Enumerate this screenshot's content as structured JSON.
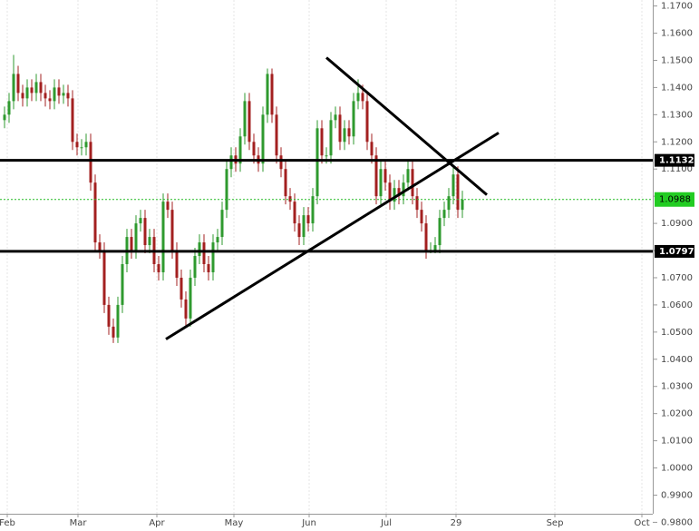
{
  "chart_data": {
    "type": "candlestick",
    "up_color": "#2f9a2f",
    "down_color": "#a32020",
    "open": [
      1.128,
      1.13,
      1.135,
      1.145,
      1.138,
      1.136,
      1.14,
      1.138,
      1.142,
      1.138,
      1.136,
      1.135,
      1.14,
      1.137,
      1.138,
      1.136,
      1.12,
      1.118,
      1.118,
      1.12,
      1.105,
      1.083,
      1.08,
      1.06,
      1.052,
      1.048,
      1.06,
      1.075,
      1.085,
      1.08,
      1.09,
      1.092,
      1.082,
      1.085,
      1.075,
      1.072,
      1.098,
      1.095,
      1.08,
      1.07,
      1.062,
      1.055,
      1.07,
      1.078,
      1.083,
      1.075,
      1.072,
      1.083,
      1.085,
      1.095,
      1.11,
      1.115,
      1.112,
      1.122,
      1.135,
      1.12,
      1.115,
      1.112,
      1.13,
      1.145,
      1.13,
      1.115,
      1.11,
      1.1,
      1.098,
      1.09,
      1.085,
      1.093,
      1.09,
      1.1,
      1.125,
      1.115,
      1.115,
      1.128,
      1.13,
      1.12,
      1.125,
      1.122,
      1.135,
      1.138,
      1.135,
      1.12,
      1.115,
      1.1,
      1.11,
      1.105,
      1.098,
      1.103,
      1.1,
      1.105,
      1.11,
      1.1,
      1.095,
      1.09,
      1.08,
      1.08,
      1.082,
      1.092,
      1.095,
      1.1,
      1.108,
      1.095
    ],
    "high": [
      1.133,
      1.138,
      1.152,
      1.148,
      1.141,
      1.143,
      1.143,
      1.145,
      1.145,
      1.141,
      1.139,
      1.143,
      1.143,
      1.141,
      1.141,
      1.139,
      1.123,
      1.121,
      1.123,
      1.123,
      1.108,
      1.086,
      1.083,
      1.063,
      1.055,
      1.063,
      1.078,
      1.088,
      1.088,
      1.093,
      1.095,
      1.095,
      1.088,
      1.088,
      1.078,
      1.101,
      1.101,
      1.098,
      1.083,
      1.073,
      1.065,
      1.073,
      1.081,
      1.086,
      1.086,
      1.078,
      1.086,
      1.088,
      1.098,
      1.113,
      1.118,
      1.118,
      1.125,
      1.138,
      1.138,
      1.123,
      1.118,
      1.133,
      1.147,
      1.147,
      1.133,
      1.118,
      1.113,
      1.103,
      1.101,
      1.093,
      1.096,
      1.096,
      1.103,
      1.128,
      1.128,
      1.118,
      1.131,
      1.133,
      1.133,
      1.128,
      1.128,
      1.138,
      1.143,
      1.141,
      1.138,
      1.123,
      1.118,
      1.113,
      1.113,
      1.108,
      1.106,
      1.106,
      1.108,
      1.113,
      1.113,
      1.103,
      1.098,
      1.093,
      1.083,
      1.085,
      1.095,
      1.098,
      1.103,
      1.111,
      1.111,
      1.102
    ],
    "low": [
      1.125,
      1.127,
      1.132,
      1.135,
      1.133,
      1.133,
      1.135,
      1.135,
      1.135,
      1.133,
      1.132,
      1.132,
      1.134,
      1.134,
      1.133,
      1.117,
      1.115,
      1.115,
      1.115,
      1.102,
      1.08,
      1.077,
      1.057,
      1.049,
      1.046,
      1.046,
      1.057,
      1.072,
      1.077,
      1.077,
      1.087,
      1.079,
      1.079,
      1.072,
      1.069,
      1.069,
      1.092,
      1.077,
      1.067,
      1.059,
      1.052,
      1.052,
      1.067,
      1.075,
      1.072,
      1.069,
      1.069,
      1.08,
      1.082,
      1.092,
      1.107,
      1.109,
      1.109,
      1.119,
      1.117,
      1.112,
      1.109,
      1.109,
      1.127,
      1.127,
      1.112,
      1.107,
      1.097,
      1.095,
      1.087,
      1.082,
      1.082,
      1.087,
      1.087,
      1.097,
      1.112,
      1.112,
      1.112,
      1.125,
      1.117,
      1.117,
      1.119,
      1.119,
      1.132,
      1.132,
      1.117,
      1.112,
      1.097,
      1.097,
      1.102,
      1.095,
      1.095,
      1.097,
      1.097,
      1.102,
      1.097,
      1.092,
      1.087,
      1.077,
      1.079,
      1.079,
      1.079,
      1.089,
      1.092,
      1.097,
      1.092,
      1.092
    ],
    "close": [
      1.13,
      1.135,
      1.145,
      1.138,
      1.136,
      1.14,
      1.138,
      1.142,
      1.138,
      1.136,
      1.135,
      1.14,
      1.137,
      1.138,
      1.136,
      1.12,
      1.118,
      1.118,
      1.12,
      1.105,
      1.083,
      1.08,
      1.06,
      1.052,
      1.048,
      1.06,
      1.075,
      1.085,
      1.08,
      1.09,
      1.092,
      1.082,
      1.085,
      1.075,
      1.072,
      1.098,
      1.095,
      1.08,
      1.07,
      1.062,
      1.055,
      1.07,
      1.078,
      1.083,
      1.075,
      1.072,
      1.083,
      1.085,
      1.095,
      1.11,
      1.115,
      1.112,
      1.122,
      1.135,
      1.12,
      1.115,
      1.112,
      1.13,
      1.145,
      1.13,
      1.115,
      1.11,
      1.1,
      1.098,
      1.09,
      1.085,
      1.093,
      1.09,
      1.1,
      1.125,
      1.115,
      1.115,
      1.128,
      1.13,
      1.12,
      1.125,
      1.122,
      1.135,
      1.138,
      1.135,
      1.12,
      1.115,
      1.1,
      1.11,
      1.105,
      1.098,
      1.103,
      1.1,
      1.105,
      1.11,
      1.1,
      1.095,
      1.09,
      1.08,
      1.08,
      1.082,
      1.092,
      1.095,
      1.1,
      1.108,
      1.095,
      1.0988
    ],
    "xlim": [
      -1,
      143
    ],
    "xticks": [
      {
        "value": 0.6,
        "label": "Feb"
      },
      {
        "value": 16.2,
        "label": "Mar"
      },
      {
        "value": 33.6,
        "label": "Apr"
      },
      {
        "value": 50.6,
        "label": "May"
      },
      {
        "value": 67.2,
        "label": "Jun"
      },
      {
        "value": 84.2,
        "label": "Jul"
      },
      {
        "value": 99.6,
        "label": "29"
      },
      {
        "value": 121.4,
        "label": "Sep"
      },
      {
        "value": 140.6,
        "label": "Oct"
      }
    ],
    "ylim": [
      1.1722,
      0.9768
    ],
    "yticks": [
      {
        "value": 1.17,
        "label": "1.1700"
      },
      {
        "value": 1.16,
        "label": "1.1600"
      },
      {
        "value": 1.15,
        "label": "1.1500"
      },
      {
        "value": 1.14,
        "label": "1.1400"
      },
      {
        "value": 1.13,
        "label": "1.1300"
      },
      {
        "value": 1.12,
        "label": "1.1200"
      },
      {
        "value": 1.11,
        "label": "1.1100"
      },
      {
        "value": 1.1,
        "label": "1.1000"
      },
      {
        "value": 1.09,
        "label": "1.0900"
      },
      {
        "value": 1.08,
        "label": "1.0800"
      },
      {
        "value": 1.07,
        "label": "1.0700"
      },
      {
        "value": 1.06,
        "label": "1.0600"
      },
      {
        "value": 1.05,
        "label": "1.0500"
      },
      {
        "value": 1.04,
        "label": "1.0400"
      },
      {
        "value": 1.03,
        "label": "1.0300"
      },
      {
        "value": 1.02,
        "label": "1.0200"
      },
      {
        "value": 1.01,
        "label": "1.0100"
      },
      {
        "value": 1.0,
        "label": "1.0000"
      },
      {
        "value": 0.99,
        "label": "0.9900"
      },
      {
        "value": 0.98,
        "label": "0.9800"
      }
    ],
    "levels": [
      1.1132,
      1.0797
    ],
    "last_price": 1.0988,
    "trend_lines": [
      {
        "x": [
          71,
          106.4
        ],
        "y": [
          1.151,
          1.1005
        ]
      },
      {
        "x": [
          35.6,
          109
        ],
        "y": [
          1.0474,
          1.1233
        ]
      }
    ],
    "grid": true
  }
}
